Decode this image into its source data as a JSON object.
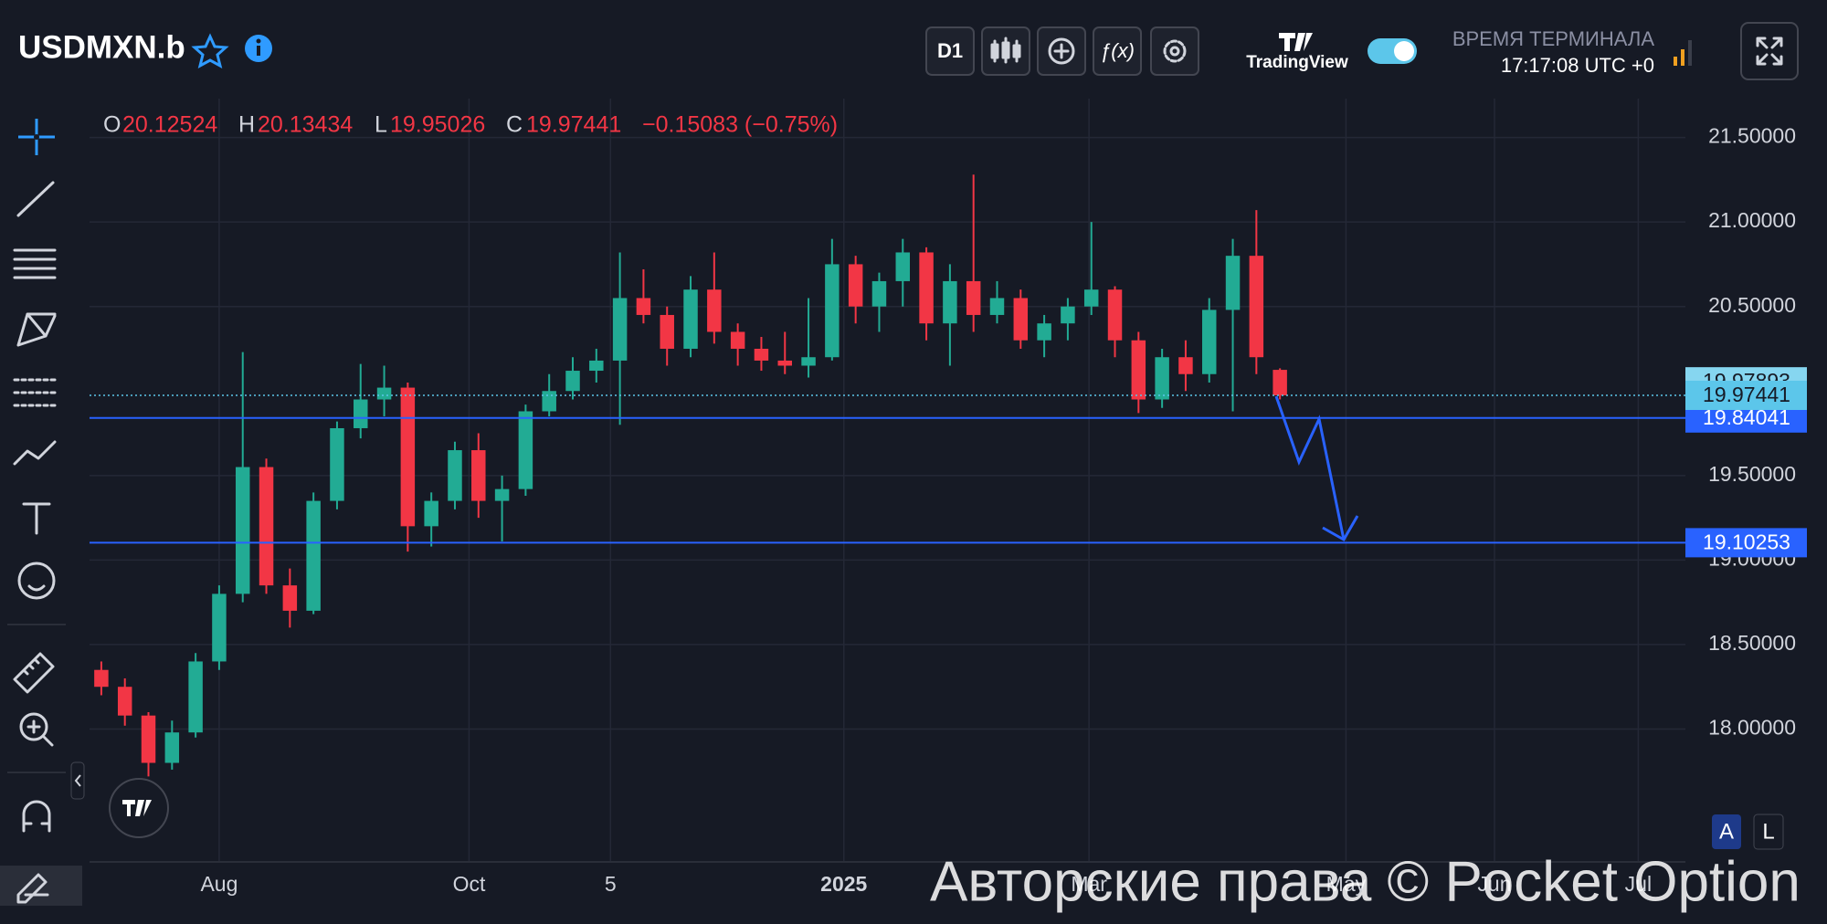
{
  "chart_data": {
    "type": "candlestick",
    "title": "USDMXN.b",
    "open": [
      18.35,
      18.25,
      18.08,
      17.8,
      17.98,
      18.4,
      18.8,
      19.55,
      18.85,
      18.7,
      19.35,
      19.78,
      19.95,
      20.02,
      19.2,
      19.35,
      19.65,
      19.35,
      19.42,
      19.88,
      20.0,
      20.12,
      20.18,
      20.55,
      20.45,
      20.25,
      20.6,
      20.35,
      20.25,
      20.18,
      20.15,
      20.2,
      20.75,
      20.5,
      20.65,
      20.82,
      20.4,
      20.65,
      20.45,
      20.55,
      20.3,
      20.4,
      20.5,
      20.6,
      20.3,
      19.95,
      20.2,
      20.1,
      20.48,
      20.8,
      20.12524
    ],
    "high": [
      18.4,
      18.3,
      18.1,
      18.05,
      18.45,
      18.85,
      20.23,
      19.6,
      18.95,
      19.4,
      19.82,
      20.16,
      20.15,
      20.05,
      19.4,
      19.7,
      19.75,
      19.5,
      19.92,
      20.1,
      20.2,
      20.25,
      20.82,
      20.72,
      20.5,
      20.68,
      20.82,
      20.4,
      20.32,
      20.35,
      20.55,
      20.9,
      20.8,
      20.7,
      20.9,
      20.85,
      20.75,
      21.28,
      20.65,
      20.6,
      20.45,
      20.55,
      21.0,
      20.62,
      20.35,
      20.25,
      20.3,
      20.55,
      20.9,
      21.07,
      20.13434
    ],
    "low": [
      18.2,
      18.02,
      17.72,
      17.76,
      17.95,
      18.35,
      18.75,
      18.8,
      18.6,
      18.68,
      19.3,
      19.72,
      19.85,
      19.05,
      19.08,
      19.3,
      19.25,
      19.11,
      19.38,
      19.85,
      19.95,
      20.05,
      19.8,
      20.4,
      20.15,
      20.2,
      20.28,
      20.15,
      20.12,
      20.1,
      20.08,
      20.18,
      20.4,
      20.35,
      20.5,
      20.3,
      20.15,
      20.35,
      20.4,
      20.25,
      20.2,
      20.3,
      20.45,
      20.2,
      19.87,
      19.9,
      20.0,
      20.05,
      19.88,
      20.1,
      19.95026
    ],
    "close": [
      18.25,
      18.08,
      17.8,
      17.98,
      18.4,
      18.8,
      19.55,
      18.85,
      18.7,
      19.35,
      19.78,
      19.95,
      20.02,
      19.2,
      19.35,
      19.65,
      19.35,
      19.42,
      19.88,
      20.0,
      20.12,
      20.18,
      20.55,
      20.45,
      20.25,
      20.6,
      20.35,
      20.25,
      20.18,
      20.15,
      20.2,
      20.75,
      20.5,
      20.65,
      20.82,
      20.4,
      20.65,
      20.45,
      20.55,
      20.3,
      20.4,
      20.5,
      20.6,
      20.3,
      19.95,
      20.2,
      20.1,
      20.48,
      20.8,
      20.2,
      19.97441
    ],
    "change": "−0.15083 (−0.75%)",
    "up_color": "#22ab94",
    "down_color": "#f23645",
    "xlim": [
      -0.5,
      67.2
    ],
    "xticks": [
      {
        "value": 5,
        "label": "Aug"
      },
      {
        "value": 15.6,
        "label": "Oct"
      },
      {
        "value": 21.6,
        "label": "5"
      },
      {
        "value": 31.5,
        "label": "2025"
      },
      {
        "value": 41.9,
        "label": "Mar"
      },
      {
        "value": 52.8,
        "label": "May"
      },
      {
        "value": 59.1,
        "label": "Jun"
      },
      {
        "value": 65.2,
        "label": "Jul"
      }
    ],
    "ylim": [
      17.214,
      21.73
    ],
    "yticks": [
      {
        "value": 18,
        "label": "18.00000"
      },
      {
        "value": 18.5,
        "label": "18.50000"
      },
      {
        "value": 19,
        "label": "19.00000"
      },
      {
        "value": 19.5,
        "label": "19.50000"
      },
      {
        "value": 20.5,
        "label": "20.50000"
      },
      {
        "value": 21,
        "label": "21.00000"
      },
      {
        "value": 21.5,
        "label": "21.50000"
      }
    ],
    "grid": true,
    "hlines": [
      19.84041,
      19.10253
    ],
    "hline_color": "#2962ff",
    "price_labels": [
      19.97893,
      19.97441
    ],
    "price_label_colors": [
      "#86d6f0",
      "#5cc6ea"
    ]
  },
  "toolbar": {
    "timeframe": "D1",
    "brand": "TradingView",
    "clock_label": "ВРЕМЯ ТЕРМИНАЛА",
    "clock": "17:17:08 UTC +0"
  },
  "scale_buttons": [
    "A",
    "L"
  ],
  "watermark": "Авторские права © Pocket Option"
}
